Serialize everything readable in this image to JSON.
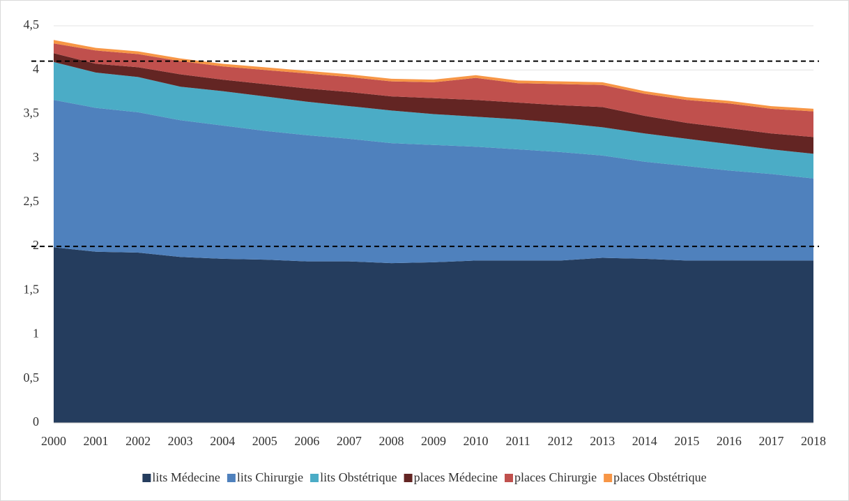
{
  "chart_data": {
    "type": "stacked_area",
    "categories": [
      "2000",
      "2001",
      "2002",
      "2003",
      "2004",
      "2005",
      "2006",
      "2007",
      "2008",
      "2009",
      "2010",
      "2011",
      "2012",
      "2013",
      "2014",
      "2015",
      "2016",
      "2017",
      "2018"
    ],
    "series": [
      {
        "name": "lits Médecine",
        "color": "#253d5e",
        "values": [
          1.99,
          1.94,
          1.93,
          1.88,
          1.86,
          1.85,
          1.83,
          1.83,
          1.81,
          1.82,
          1.84,
          1.84,
          1.84,
          1.87,
          1.86,
          1.84,
          1.84,
          1.84,
          1.84
        ]
      },
      {
        "name": "lits Chirurgie",
        "color": "#4f81bd",
        "values": [
          1.67,
          1.63,
          1.59,
          1.55,
          1.51,
          1.46,
          1.43,
          1.39,
          1.36,
          1.33,
          1.29,
          1.26,
          1.23,
          1.16,
          1.1,
          1.07,
          1.02,
          0.98,
          0.93
        ]
      },
      {
        "name": "lits Obstétrique",
        "color": "#4bacc6",
        "values": [
          0.43,
          0.4,
          0.4,
          0.38,
          0.39,
          0.39,
          0.38,
          0.37,
          0.37,
          0.35,
          0.34,
          0.34,
          0.33,
          0.32,
          0.32,
          0.31,
          0.3,
          0.28,
          0.28
        ]
      },
      {
        "name": "places Médecine",
        "color": "#632523",
        "values": [
          0.1,
          0.1,
          0.11,
          0.14,
          0.13,
          0.14,
          0.15,
          0.16,
          0.16,
          0.18,
          0.19,
          0.19,
          0.2,
          0.23,
          0.2,
          0.18,
          0.18,
          0.18,
          0.19
        ]
      },
      {
        "name": "places Chirurgie",
        "color": "#c0504d",
        "values": [
          0.11,
          0.15,
          0.15,
          0.15,
          0.15,
          0.16,
          0.17,
          0.17,
          0.17,
          0.18,
          0.25,
          0.22,
          0.24,
          0.25,
          0.25,
          0.26,
          0.28,
          0.28,
          0.29
        ]
      },
      {
        "name": "places Obstétrique",
        "color": "#f79646",
        "values": [
          0.04,
          0.03,
          0.03,
          0.03,
          0.03,
          0.03,
          0.03,
          0.03,
          0.03,
          0.03,
          0.03,
          0.03,
          0.03,
          0.03,
          0.03,
          0.03,
          0.03,
          0.03,
          0.03
        ]
      }
    ],
    "ylim": [
      0,
      4.5
    ],
    "yticks": [
      0,
      {
        "value": 0.5,
        "label": "0,5"
      },
      1,
      {
        "value": 1.5,
        "label": "1,5"
      },
      2,
      {
        "value": 2.5,
        "label": "2,5"
      },
      3,
      {
        "value": 3.5,
        "label": "3,5"
      },
      4,
      {
        "value": 4.5,
        "label": "4,5"
      }
    ],
    "grid": true,
    "reference_lines": [
      2,
      4.1
    ],
    "legend": "bottom"
  }
}
